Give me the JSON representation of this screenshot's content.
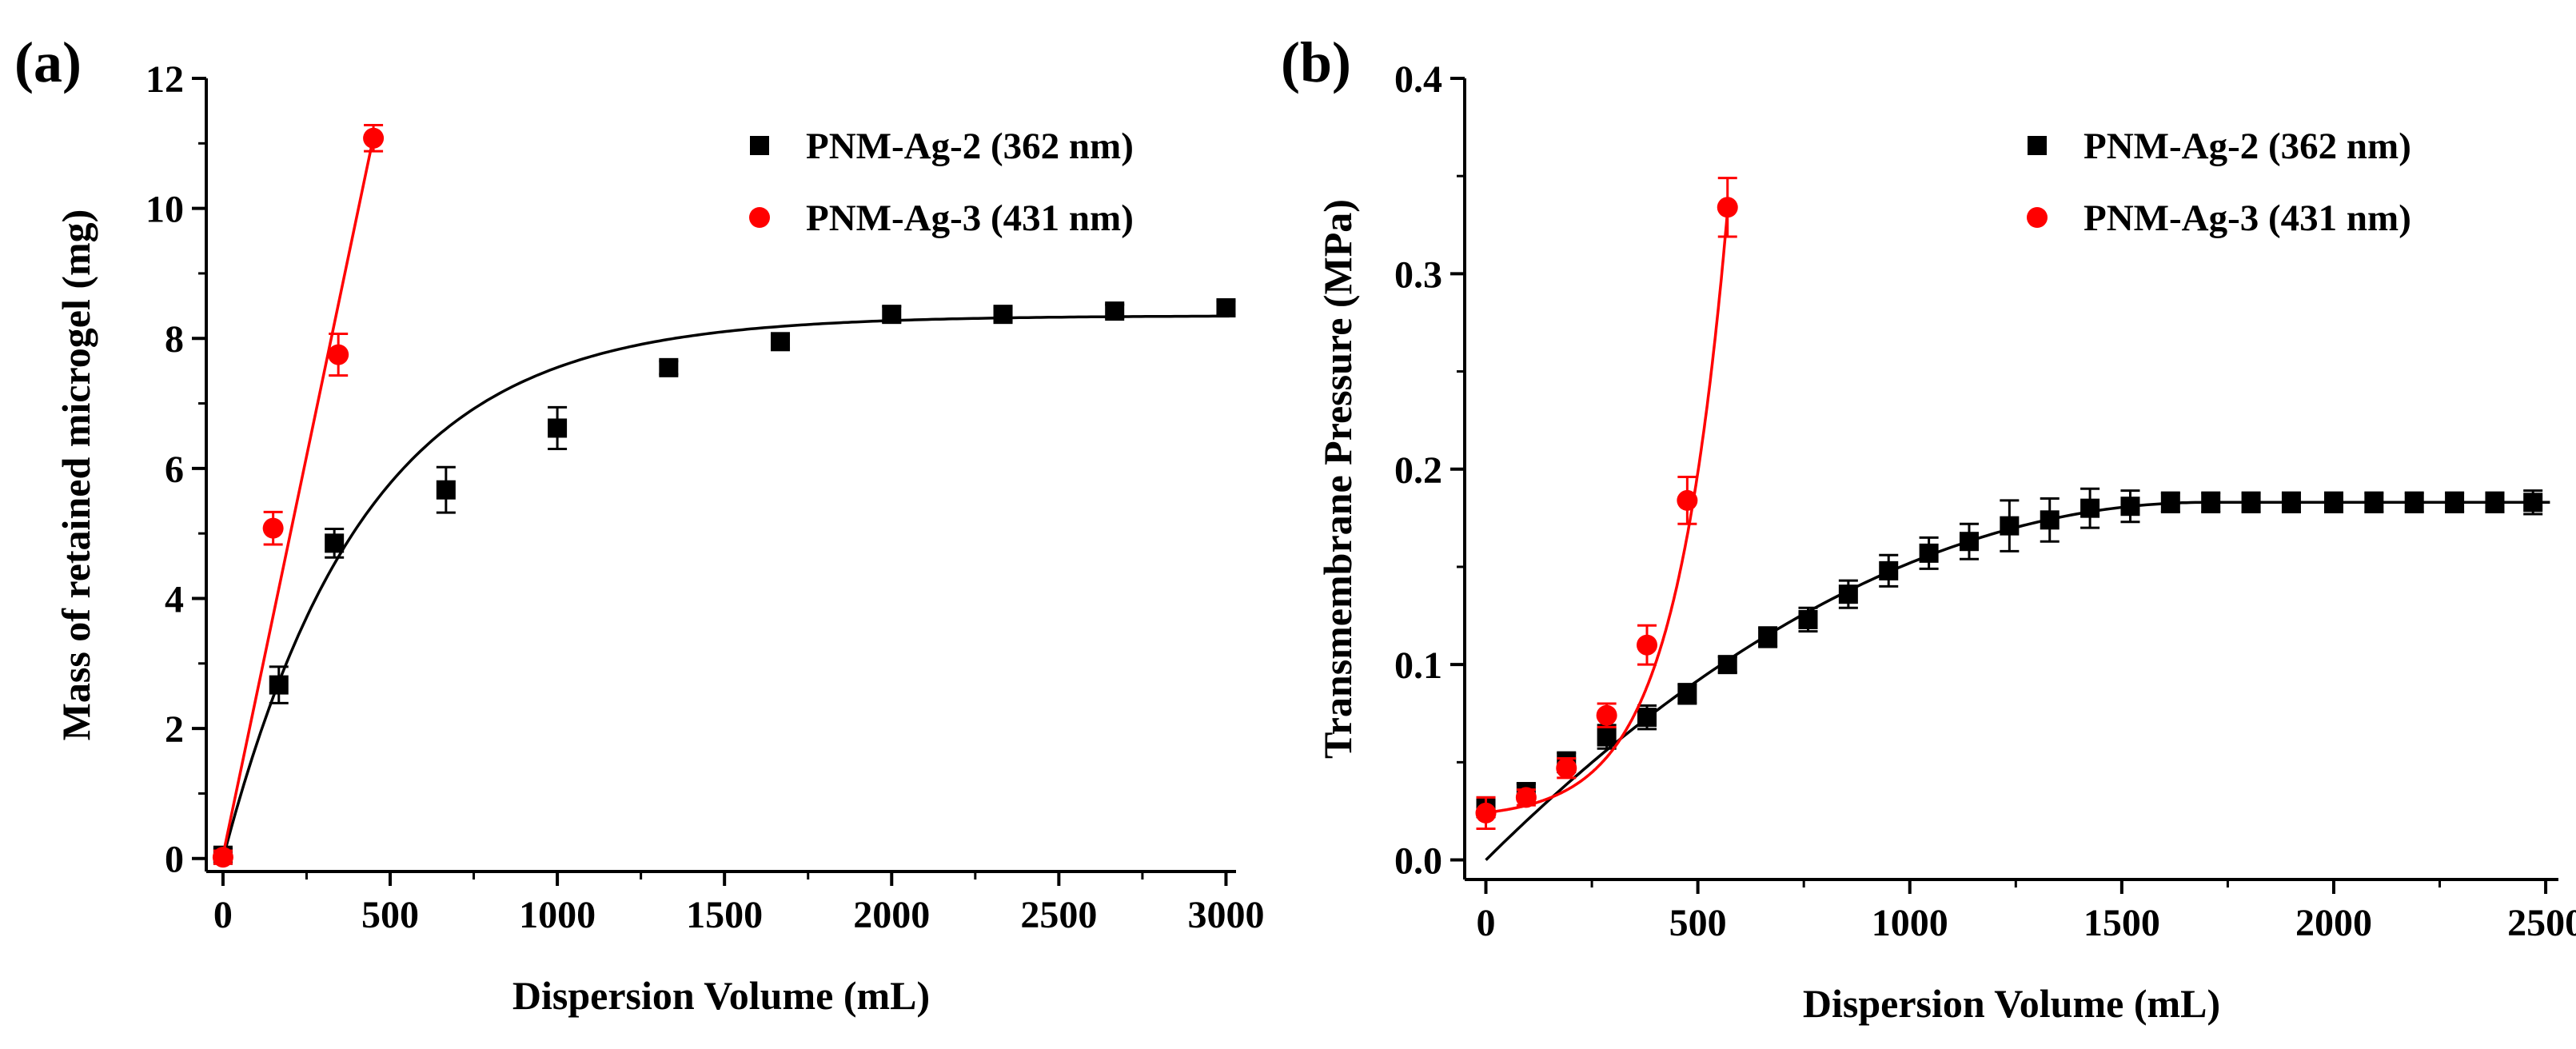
{
  "chart_data": [
    {
      "type": "scatter",
      "panel_label": "(a)",
      "xlabel": "Dispersion Volume (mL)",
      "ylabel": "Mass of retained microgel (mg)",
      "xlim": [
        -50,
        3030
      ],
      "ylim": [
        -0.2,
        12
      ],
      "xticks": [
        0,
        500,
        1000,
        1500,
        2000,
        2500,
        3000
      ],
      "yticks": [
        0,
        2,
        4,
        6,
        8,
        10,
        12
      ],
      "tick_labels_x": [
        "0",
        "500",
        "1000",
        "1500",
        "2000",
        "2500",
        "3000"
      ],
      "tick_labels_y": [
        "0",
        "2",
        "4",
        "6",
        "8",
        "10",
        "12"
      ],
      "legend_position": "top-right",
      "series": [
        {
          "name": "PNM-Ag-2 (362 nm)",
          "marker": "square",
          "color": "#000000",
          "x": [
            0,
            167,
            333,
            667,
            1000,
            1333,
            1667,
            2000,
            2333,
            2667,
            3000
          ],
          "y": [
            0.05,
            2.67,
            4.85,
            5.67,
            6.62,
            7.55,
            7.95,
            8.37,
            8.37,
            8.42,
            8.47
          ],
          "err": [
            0.1,
            0.28,
            0.22,
            0.35,
            0.32,
            0.1,
            0.1,
            0.12,
            0.1,
            0.1,
            0.1
          ],
          "fit": {
            "type": "exponential",
            "a": 8.35,
            "k": 0.00235
          }
        },
        {
          "name": "PNM-Ag-3 (431 nm)",
          "marker": "circle",
          "color": "#ff0000",
          "x": [
            0,
            150,
            345,
            450
          ],
          "y": [
            0.02,
            5.08,
            7.75,
            11.08
          ],
          "err": [
            0.1,
            0.25,
            0.32,
            0.2
          ],
          "fit": {
            "type": "linear",
            "x": [
              0,
              450
            ],
            "y": [
              0.05,
              11.1
            ]
          }
        }
      ]
    },
    {
      "type": "scatter",
      "panel_label": "(b)",
      "xlabel": "Dispersion Volume (mL)",
      "ylabel": "Transmembrane  Pressure (MPa)",
      "xlim": [
        -50,
        2530
      ],
      "ylim": [
        -0.01,
        0.4
      ],
      "xticks": [
        0,
        500,
        1000,
        1500,
        2000,
        2500
      ],
      "yticks": [
        0.0,
        0.1,
        0.2,
        0.3,
        0.4
      ],
      "tick_labels_x": [
        "0",
        "500",
        "1000",
        "1500",
        "2000",
        "2500"
      ],
      "tick_labels_y": [
        "0.0",
        "0.1",
        "0.2",
        "0.3",
        "0.4"
      ],
      "legend_position": "top-right",
      "series": [
        {
          "name": "PNM-Ag-2 (362 nm)",
          "marker": "square",
          "color": "#000000",
          "x": [
            0,
            95,
            190,
            285,
            380,
            475,
            570,
            665,
            760,
            855,
            950,
            1045,
            1140,
            1235,
            1330,
            1425,
            1520,
            1615,
            1710,
            1805,
            1900,
            2000,
            2095,
            2190,
            2285,
            2380,
            2470
          ],
          "y": [
            0.027,
            0.035,
            0.05,
            0.063,
            0.073,
            0.085,
            0.1,
            0.114,
            0.123,
            0.136,
            0.148,
            0.157,
            0.163,
            0.171,
            0.174,
            0.18,
            0.181,
            0.183,
            0.183,
            0.183,
            0.183,
            0.183,
            0.183,
            0.183,
            0.183,
            0.183,
            0.183
          ],
          "err": [
            0.005,
            0.004,
            0.005,
            0.006,
            0.006,
            0.005,
            0.004,
            0.005,
            0.006,
            0.007,
            0.008,
            0.008,
            0.009,
            0.013,
            0.011,
            0.01,
            0.008,
            0.005,
            0.005,
            0.005,
            0.005,
            0.005,
            0.005,
            0.005,
            0.005,
            0.005,
            0.006
          ],
          "fit": {
            "type": "quadratic-plateau",
            "y0": 0.0,
            "ymax": 0.183,
            "xs": 1700
          }
        },
        {
          "name": "PNM-Ag-3 (431 nm)",
          "marker": "circle",
          "color": "#ff0000",
          "x": [
            0,
            95,
            190,
            285,
            380,
            475,
            570
          ],
          "y": [
            0.024,
            0.032,
            0.047,
            0.074,
            0.11,
            0.184,
            0.334
          ],
          "err": [
            0.008,
            0.004,
            0.005,
            0.006,
            0.01,
            0.012,
            0.015
          ],
          "fit": {
            "type": "exponential-growth",
            "y0": 0.021,
            "a": 0.0032,
            "b": 0.00803,
            "xmax": 572
          }
        }
      ]
    }
  ]
}
